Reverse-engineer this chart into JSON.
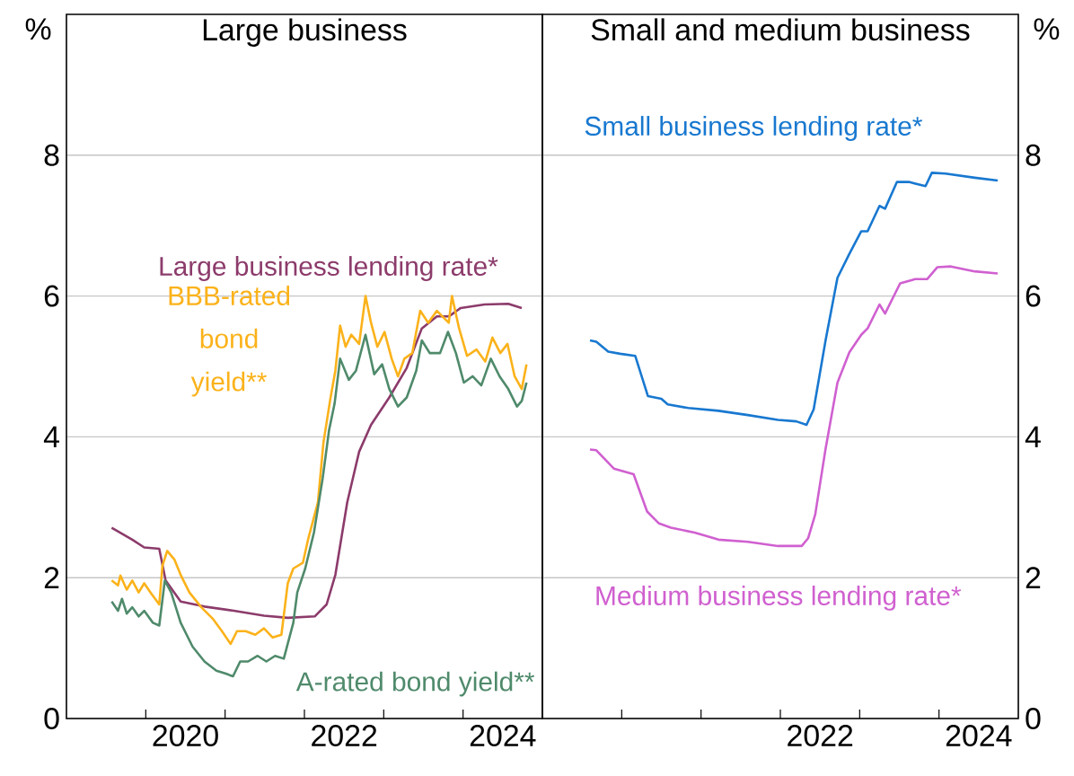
{
  "chart_data": [
    {
      "type": "line",
      "title": "Large business",
      "ylabel": "%",
      "grid": "y",
      "xlim": [
        2019,
        2025
      ],
      "xticks": [
        {
          "value": 2020,
          "label": null
        },
        {
          "value": 2021,
          "label": null
        },
        {
          "value": 2022,
          "label": null
        },
        {
          "value": 2023,
          "label": null
        },
        {
          "value": 2024,
          "label": null
        },
        {
          "value": 2020.5,
          "label": "2020"
        },
        {
          "value": 2022.5,
          "label": "2022"
        },
        {
          "value": 2024.5,
          "label": "2024"
        }
      ],
      "ylim": [
        0,
        10
      ],
      "yticks": [
        0,
        2,
        4,
        6,
        8
      ],
      "series": [
        {
          "name": "Large business lending rate*",
          "color": "#8c3b6b",
          "x": [
            2019.57,
            2019.83,
            2019.98,
            2020.17,
            2020.25,
            2020.44,
            2020.74,
            2021.11,
            2021.49,
            2021.79,
            2022.13,
            2022.28,
            2022.39,
            2022.54,
            2022.69,
            2022.84,
            2023.07,
            2023.29,
            2023.48,
            2023.67,
            2023.82,
            2023.97,
            2024.27,
            2024.57,
            2024.74
          ],
          "values": [
            2.71,
            2.54,
            2.43,
            2.41,
            1.96,
            1.66,
            1.59,
            1.53,
            1.46,
            1.43,
            1.45,
            1.62,
            2.04,
            3.07,
            3.79,
            4.17,
            4.56,
            4.98,
            5.54,
            5.71,
            5.71,
            5.83,
            5.88,
            5.89,
            5.83
          ]
        },
        {
          "name": "BBB-rated bond yield**",
          "color": "#fbb21a",
          "x": [
            2019.57,
            2019.65,
            2019.68,
            2019.76,
            2019.83,
            2019.91,
            2019.98,
            2020.06,
            2020.17,
            2020.21,
            2020.27,
            2020.36,
            2020.44,
            2020.55,
            2020.7,
            2020.85,
            2020.96,
            2021.07,
            2021.15,
            2021.26,
            2021.38,
            2021.49,
            2021.6,
            2021.71,
            2021.79,
            2021.86,
            2021.98,
            2022.05,
            2022.17,
            2022.24,
            2022.33,
            2022.39,
            2022.45,
            2022.52,
            2022.59,
            2022.69,
            2022.77,
            2022.84,
            2022.92,
            2023.01,
            2023.1,
            2023.18,
            2023.26,
            2023.36,
            2023.46,
            2023.56,
            2023.67,
            2023.82,
            2023.86,
            2023.95,
            2024.05,
            2024.17,
            2024.28,
            2024.37,
            2024.47,
            2024.56,
            2024.65,
            2024.74,
            2024.8
          ],
          "values": [
            1.96,
            1.89,
            2.03,
            1.83,
            1.96,
            1.79,
            1.92,
            1.79,
            1.62,
            2.17,
            2.38,
            2.26,
            2.04,
            1.79,
            1.58,
            1.41,
            1.24,
            1.06,
            1.24,
            1.24,
            1.19,
            1.28,
            1.15,
            1.19,
            1.92,
            2.13,
            2.21,
            2.56,
            3.07,
            3.92,
            4.56,
            4.94,
            5.58,
            5.28,
            5.45,
            5.32,
            6.0,
            5.62,
            5.28,
            5.49,
            5.11,
            4.86,
            5.11,
            5.19,
            5.79,
            5.62,
            5.79,
            5.62,
            6.0,
            5.54,
            5.15,
            5.24,
            5.07,
            5.41,
            5.19,
            5.32,
            4.86,
            4.68,
            5.03
          ]
        },
        {
          "name": "A-rated bond yield**",
          "color": "#4f8a6b",
          "x": [
            2019.57,
            2019.65,
            2019.7,
            2019.76,
            2019.83,
            2019.91,
            2019.98,
            2020.09,
            2020.17,
            2020.24,
            2020.32,
            2020.44,
            2020.59,
            2020.74,
            2020.89,
            2021.0,
            2021.1,
            2021.19,
            2021.29,
            2021.41,
            2021.52,
            2021.63,
            2021.74,
            2021.86,
            2021.91,
            2022.01,
            2022.12,
            2022.23,
            2022.31,
            2022.38,
            2022.45,
            2022.56,
            2022.65,
            2022.77,
            2022.88,
            2022.98,
            2023.07,
            2023.18,
            2023.29,
            2023.41,
            2023.48,
            2023.58,
            2023.71,
            2023.81,
            2023.91,
            2024.01,
            2024.12,
            2024.23,
            2024.35,
            2024.46,
            2024.57,
            2024.68,
            2024.74,
            2024.8
          ],
          "values": [
            1.66,
            1.53,
            1.7,
            1.49,
            1.58,
            1.45,
            1.53,
            1.36,
            1.32,
            1.96,
            1.79,
            1.36,
            1.02,
            0.81,
            0.68,
            0.64,
            0.6,
            0.81,
            0.81,
            0.89,
            0.81,
            0.89,
            0.85,
            1.36,
            1.79,
            2.13,
            2.64,
            3.41,
            4.09,
            4.47,
            5.11,
            4.81,
            4.94,
            5.45,
            4.89,
            5.03,
            4.68,
            4.43,
            4.56,
            4.94,
            5.37,
            5.19,
            5.19,
            5.49,
            5.19,
            4.77,
            4.86,
            4.73,
            5.11,
            4.86,
            4.68,
            4.43,
            4.51,
            4.77
          ]
        }
      ]
    },
    {
      "type": "line",
      "title": "Small and medium business",
      "ylabel": "%",
      "grid": "y",
      "xlim": [
        2019,
        2025
      ],
      "xticks": [
        {
          "value": 2020,
          "label": null
        },
        {
          "value": 2021,
          "label": null
        },
        {
          "value": 2022,
          "label": null
        },
        {
          "value": 2023,
          "label": null
        },
        {
          "value": 2024,
          "label": null
        },
        {
          "value": 2022.5,
          "label": "2022"
        },
        {
          "value": 2024.5,
          "label": "2024"
        }
      ],
      "ylim": [
        0,
        10
      ],
      "yticks": [
        0,
        2,
        4,
        6,
        8
      ],
      "series": [
        {
          "name": "Small business lending rate*",
          "color": "#1878d0",
          "x": [
            2019.6,
            2019.68,
            2019.83,
            2019.98,
            2020.17,
            2020.33,
            2020.5,
            2020.58,
            2020.84,
            2021.22,
            2021.59,
            2021.97,
            2022.2,
            2022.33,
            2022.42,
            2022.57,
            2022.72,
            2022.87,
            2023.02,
            2023.1,
            2023.25,
            2023.32,
            2023.47,
            2023.62,
            2023.83,
            2023.91,
            2024.08,
            2024.45,
            2024.74
          ],
          "values": [
            5.37,
            5.35,
            5.21,
            5.18,
            5.15,
            4.58,
            4.54,
            4.46,
            4.41,
            4.37,
            4.31,
            4.24,
            4.22,
            4.17,
            4.39,
            5.37,
            6.26,
            6.6,
            6.92,
            6.92,
            7.28,
            7.24,
            7.62,
            7.62,
            7.56,
            7.75,
            7.74,
            7.68,
            7.64
          ]
        },
        {
          "name": "Medium business lending rate*",
          "color": "#d060d0",
          "x": [
            2019.6,
            2019.68,
            2019.9,
            2020.15,
            2020.32,
            2020.47,
            2020.62,
            2020.92,
            2021.22,
            2021.59,
            2021.97,
            2022.27,
            2022.35,
            2022.44,
            2022.57,
            2022.72,
            2022.87,
            2023.02,
            2023.1,
            2023.25,
            2023.32,
            2023.51,
            2023.7,
            2023.85,
            2023.98,
            2024.15,
            2024.45,
            2024.74
          ],
          "values": [
            3.82,
            3.81,
            3.55,
            3.47,
            2.94,
            2.77,
            2.71,
            2.64,
            2.54,
            2.51,
            2.45,
            2.45,
            2.56,
            2.9,
            3.83,
            4.77,
            5.2,
            5.45,
            5.54,
            5.88,
            5.75,
            6.18,
            6.24,
            6.24,
            6.41,
            6.42,
            6.35,
            6.32
          ]
        }
      ]
    }
  ]
}
